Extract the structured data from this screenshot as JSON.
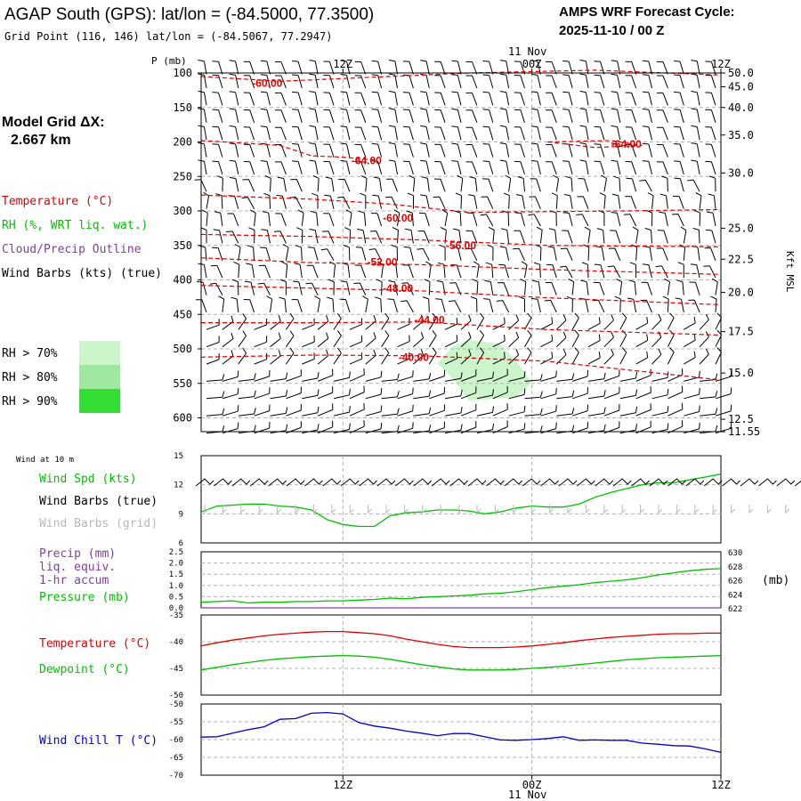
{
  "header": {
    "title": "AGAP South (GPS):  lat/lon = (-84.5000, 77.3500)",
    "grid_point": "Grid Point (116, 146) lat/lon = (-84.5067, 77.2947)",
    "cycle_label": "AMPS WRF Forecast Cycle:",
    "cycle_value": "2025-11-10 / 00  Z",
    "model_grid_label": "Model Grid ΔX:",
    "model_grid_value": "2.667 km"
  },
  "colors": {
    "temperature": "#e00000",
    "rh": "#00c000",
    "cloud": "#8040a0",
    "wind_barbs": "#000000",
    "wind_barbs_grid": "#b8b8b8",
    "wind_chill": "#0000cc",
    "rh70": "#ccf5cc",
    "rh80": "#a0e8a0",
    "rh90": "#33dd33",
    "gridline": "#b0b0b0"
  },
  "legend": {
    "temperature": "Temperature (°C)",
    "rh": "RH (%, WRT liq. wat.)",
    "cloud": "Cloud/Precip Outline",
    "wind_barbs": "Wind Barbs (kts) (true)",
    "rh70": "RH > 70%",
    "rh80": "RH > 80%",
    "rh90": "RH > 90%"
  },
  "chart_data": [
    {
      "type": "heatmap",
      "id": "cross-section",
      "ylabel_left": "P (mb)",
      "ylabel_right": "Kft MSL",
      "time_labels_top": [
        "12Z",
        "00Z",
        "12Z"
      ],
      "date_label_top": "11 Nov",
      "time_hours": [
        12,
        24,
        36
      ],
      "x_range_hours": [
        3,
        36
      ],
      "pressure_ticks": [
        100,
        150,
        200,
        250,
        300,
        350,
        400,
        450,
        500,
        550,
        600
      ],
      "pressure_range": [
        100,
        620
      ],
      "kft_ticks": [
        "50.0",
        "45.0",
        "40.0",
        "35.0",
        "30.0",
        "25.0",
        "22.5",
        "20.0",
        "17.5",
        "15.0",
        "12.5",
        "11.55"
      ],
      "kft_pressures": [
        100,
        120,
        150,
        190,
        245,
        325,
        370,
        418,
        475,
        535,
        602,
        620
      ],
      "temperature_contours": [
        {
          "label": "-60.00",
          "label_hour": 7.2,
          "label_p": 115,
          "points": [
            [
              3,
              105
            ],
            [
              8,
              112
            ],
            [
              14,
              106
            ],
            [
              20,
              100
            ],
            [
              28,
              96
            ],
            [
              36,
              103
            ]
          ]
        },
        {
          "label": "-64.00",
          "label_hour": 13.5,
          "label_p": 227,
          "points": [
            [
              3,
              198
            ],
            [
              8,
              205
            ],
            [
              10,
              220
            ],
            [
              12,
              222
            ],
            [
              14,
              226
            ]
          ]
        },
        {
          "label": "-64.00",
          "label_hour": 30,
          "label_p": 203,
          "points": [
            [
              25,
              200
            ],
            [
              28,
              208
            ],
            [
              31,
              205
            ],
            [
              29,
              198
            ],
            [
              25,
              200
            ]
          ]
        },
        {
          "label": "-60.00",
          "label_hour": 15.5,
          "label_p": 310,
          "points": [
            [
              3,
              277
            ],
            [
              10,
              283
            ],
            [
              15,
              290
            ],
            [
              20,
              302
            ],
            [
              30,
              300
            ],
            [
              36,
              298
            ]
          ]
        },
        {
          "label": "-56.00",
          "label_hour": 19.5,
          "label_p": 350,
          "points": [
            [
              3,
              334
            ],
            [
              10,
              337
            ],
            [
              17,
              342
            ],
            [
              25,
              350
            ],
            [
              36,
              352
            ]
          ]
        },
        {
          "label": "-52.00",
          "label_hour": 14.5,
          "label_p": 374,
          "points": [
            [
              3,
              368
            ],
            [
              10,
              375
            ],
            [
              17,
              378
            ],
            [
              25,
              385
            ],
            [
              36,
              392
            ]
          ]
        },
        {
          "label": "-48.00",
          "label_hour": 15.5,
          "label_p": 412,
          "points": [
            [
              3,
              408
            ],
            [
              10,
              412
            ],
            [
              17,
              416
            ],
            [
              25,
              426
            ],
            [
              36,
              436
            ]
          ]
        },
        {
          "label": "-44.00",
          "label_hour": 17.5,
          "label_p": 458,
          "points": [
            [
              3,
              462
            ],
            [
              10,
              462
            ],
            [
              17,
              461
            ],
            [
              25,
              472
            ],
            [
              36,
              480
            ]
          ]
        },
        {
          "label": "-40.00",
          "label_hour": 16.5,
          "label_p": 512,
          "points": [
            [
              3,
              512
            ],
            [
              10,
              509
            ],
            [
              17,
              510
            ],
            [
              25,
              518
            ],
            [
              36,
              545
            ]
          ]
        }
      ],
      "rh_shading": [
        {
          "level": "rh70",
          "points": [
            [
              19,
              496
            ],
            [
              20,
              487
            ],
            [
              22,
              493
            ],
            [
              23,
              517
            ],
            [
              24,
              549
            ],
            [
              23,
              570
            ],
            [
              20,
              575
            ],
            [
              19,
              544
            ],
            [
              18,
              521
            ]
          ]
        }
      ],
      "wind_barb_rows": {
        "pressures": [
          102,
          122,
          147,
          172,
          197,
          222,
          247,
          272,
          297,
          322,
          347,
          372,
          397,
          422,
          447,
          472,
          497,
          522,
          547,
          572,
          597,
          622
        ],
        "count_per_row": 33
      }
    },
    {
      "type": "line",
      "id": "wind-10m",
      "panel_label": "Wind at 10 m",
      "legend": [
        "Wind Spd (kts)",
        "Wind Barbs (true)",
        "Wind Barbs (grid)"
      ],
      "ylim": [
        6,
        15
      ],
      "yticks": [
        6,
        9,
        12,
        15
      ],
      "x": [
        3,
        4,
        5,
        6,
        7,
        8,
        9,
        10,
        11,
        12,
        13,
        14,
        15,
        16,
        17,
        18,
        19,
        20,
        21,
        22,
        23,
        24,
        25,
        26,
        27,
        28,
        29,
        30,
        31,
        32,
        33,
        34,
        35,
        36
      ],
      "series": [
        {
          "name": "Wind Spd (kts)",
          "color": "#00c000",
          "values": [
            9.2,
            9.8,
            9.9,
            10.0,
            10.0,
            9.8,
            9.7,
            9.4,
            8.4,
            7.9,
            7.7,
            7.7,
            8.8,
            9.1,
            9.2,
            9.4,
            9.4,
            9.3,
            9.0,
            9.2,
            9.6,
            9.8,
            9.7,
            9.7,
            10.0,
            10.7,
            11.2,
            11.6,
            12.0,
            12.2,
            12.2,
            12.5,
            12.8,
            13.1
          ]
        }
      ]
    },
    {
      "type": "line",
      "id": "precip-pressure",
      "legend": [
        "Precip (mm)",
        "liq. equiv.",
        "1-hr accum",
        "Pressure (mb)"
      ],
      "ylim_left": [
        0,
        2.5
      ],
      "yticks_left": [
        "0.0",
        "0.5",
        "1.0",
        "1.5",
        "2.0",
        "2.5"
      ],
      "ylim_right": [
        622,
        630
      ],
      "yticks_right": [
        "622",
        "624",
        "626",
        "628",
        "630"
      ],
      "right_axis_unit": "(mb)",
      "x": [
        3,
        4,
        5,
        6,
        7,
        8,
        9,
        10,
        11,
        12,
        13,
        14,
        15,
        16,
        17,
        18,
        19,
        20,
        21,
        22,
        23,
        24,
        25,
        26,
        27,
        28,
        29,
        30,
        31,
        32,
        33,
        34,
        35,
        36
      ],
      "series": [
        {
          "name": "Pressure (mb)",
          "axis": "right",
          "color": "#00c000",
          "values": [
            622.8,
            622.9,
            623.0,
            622.7,
            622.8,
            622.8,
            622.9,
            622.9,
            623.0,
            623.0,
            623.1,
            623.2,
            623.4,
            623.3,
            623.5,
            623.6,
            623.7,
            623.8,
            624.0,
            624.1,
            624.3,
            624.6,
            624.9,
            625.1,
            625.3,
            625.6,
            625.8,
            626.0,
            626.3,
            626.7,
            627.0,
            627.3,
            627.5,
            627.6
          ]
        },
        {
          "name": "Precip (mm)",
          "axis": "left",
          "color": "#8040a0",
          "values": [
            0,
            0,
            0,
            0,
            0,
            0,
            0,
            0,
            0,
            0,
            0,
            0,
            0,
            0,
            0,
            0,
            0,
            0,
            0,
            0,
            0,
            0,
            0,
            0,
            0,
            0,
            0,
            0,
            0,
            0,
            0,
            0,
            0,
            0
          ]
        }
      ]
    },
    {
      "type": "line",
      "id": "temp-dewpoint",
      "legend": [
        "Temperature (°C)",
        "Dewpoint (°C)"
      ],
      "ylim": [
        -50,
        -35
      ],
      "yticks": [
        -50,
        -45,
        -40,
        -35
      ],
      "x": [
        3,
        4,
        5,
        6,
        7,
        8,
        9,
        10,
        11,
        12,
        13,
        14,
        15,
        16,
        17,
        18,
        19,
        20,
        21,
        22,
        23,
        24,
        25,
        26,
        27,
        28,
        29,
        30,
        31,
        32,
        33,
        34,
        35,
        36
      ],
      "series": [
        {
          "name": "Temperature (°C)",
          "color": "#e00000",
          "values": [
            -40.8,
            -40.2,
            -39.7,
            -39.3,
            -38.9,
            -38.6,
            -38.4,
            -38.2,
            -38.1,
            -38.1,
            -38.3,
            -38.5,
            -38.9,
            -39.5,
            -40.0,
            -40.5,
            -40.9,
            -41.1,
            -41.1,
            -41.1,
            -41.0,
            -40.8,
            -40.5,
            -40.2,
            -39.8,
            -39.5,
            -39.2,
            -39.0,
            -38.8,
            -38.6,
            -38.5,
            -38.5,
            -38.4,
            -38.4
          ]
        },
        {
          "name": "Dewpoint (°C)",
          "color": "#00c000",
          "values": [
            -45.3,
            -44.8,
            -44.3,
            -43.9,
            -43.5,
            -43.2,
            -43.0,
            -42.8,
            -42.7,
            -42.6,
            -42.7,
            -42.9,
            -43.3,
            -43.8,
            -44.3,
            -44.7,
            -45.1,
            -45.3,
            -45.3,
            -45.3,
            -45.2,
            -45.0,
            -44.8,
            -44.6,
            -44.3,
            -44.0,
            -43.7,
            -43.4,
            -43.2,
            -43.0,
            -42.9,
            -42.8,
            -42.7,
            -42.6
          ]
        }
      ]
    },
    {
      "type": "line",
      "id": "wind-chill",
      "legend": [
        "Wind Chill T (°C)"
      ],
      "ylim": [
        -70,
        -50
      ],
      "yticks": [
        -70,
        -65,
        -60,
        -55,
        -50
      ],
      "x": [
        3,
        4,
        5,
        6,
        7,
        8,
        9,
        10,
        11,
        12,
        13,
        14,
        15,
        16,
        17,
        18,
        19,
        20,
        21,
        22,
        23,
        24,
        25,
        26,
        27,
        28,
        29,
        30,
        31,
        32,
        33,
        34,
        35,
        36
      ],
      "series": [
        {
          "name": "Wind Chill T (°C)",
          "color": "#0000cc",
          "values": [
            -59.3,
            -59.2,
            -58.2,
            -57.2,
            -56.4,
            -54.3,
            -54.1,
            -52.6,
            -52.4,
            -52.8,
            -55.2,
            -56.2,
            -56.8,
            -57.6,
            -58.2,
            -58.9,
            -58.3,
            -58.3,
            -59.2,
            -60.1,
            -60.2,
            -60.0,
            -59.7,
            -59.2,
            -60.2,
            -60.1,
            -60.2,
            -60.2,
            -61.0,
            -61.3,
            -61.7,
            -61.8,
            -62.6,
            -63.6
          ]
        }
      ]
    }
  ],
  "axes": {
    "bottom_time_labels": [
      "12Z",
      "00Z",
      "12Z"
    ],
    "bottom_date_label": "11 Nov"
  }
}
